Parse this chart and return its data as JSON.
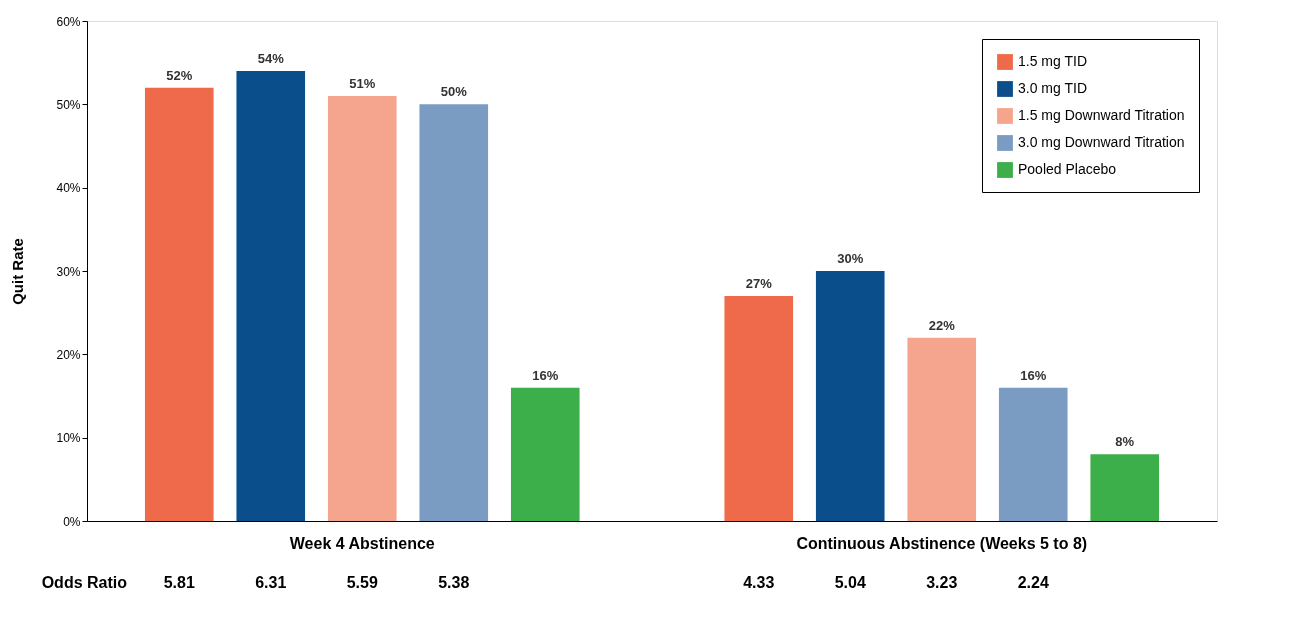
{
  "chart_data": {
    "type": "bar",
    "ylabel": "Quit Rate",
    "categories": [
      "Week 4 Abstinence",
      "Continuous Abstinence (Weeks 5 to 8)"
    ],
    "series": [
      {
        "name": "1.5 mg TID",
        "color": "#ef6a4a",
        "values": [
          52,
          27
        ],
        "value_labels": [
          "52%",
          "27%"
        ]
      },
      {
        "name": "3.0 mg TID",
        "color": "#0a4f8c",
        "values": [
          54,
          30
        ],
        "value_labels": [
          "54%",
          "30%"
        ]
      },
      {
        "name": "1.5 mg Downward Titration",
        "color": "#f5a58e",
        "values": [
          51,
          22
        ],
        "value_labels": [
          "51%",
          "22%"
        ]
      },
      {
        "name": "3.0 mg Downward Titration",
        "color": "#7a9cc2",
        "values": [
          50,
          16
        ],
        "value_labels": [
          "50%",
          "16%"
        ]
      },
      {
        "name": "Pooled Placebo",
        "color": "#3daf4a",
        "values": [
          16,
          8
        ],
        "value_labels": [
          "16%",
          "8%"
        ]
      }
    ],
    "ylim": [
      0,
      60
    ],
    "yticks": [
      {
        "value": 0,
        "label": "0%"
      },
      {
        "value": 10,
        "label": "10%"
      },
      {
        "value": 20,
        "label": "20%"
      },
      {
        "value": 30,
        "label": "30%"
      },
      {
        "value": 40,
        "label": "40%"
      },
      {
        "value": 50,
        "label": "50%"
      },
      {
        "value": 60,
        "label": "60%"
      }
    ],
    "grid": false,
    "legend": "top right",
    "annotations": [
      "Odds Ratio",
      "5.81",
      "6.31",
      "5.59",
      "5.38",
      "4.33",
      "5.04",
      "3.23",
      "2.24"
    ]
  }
}
